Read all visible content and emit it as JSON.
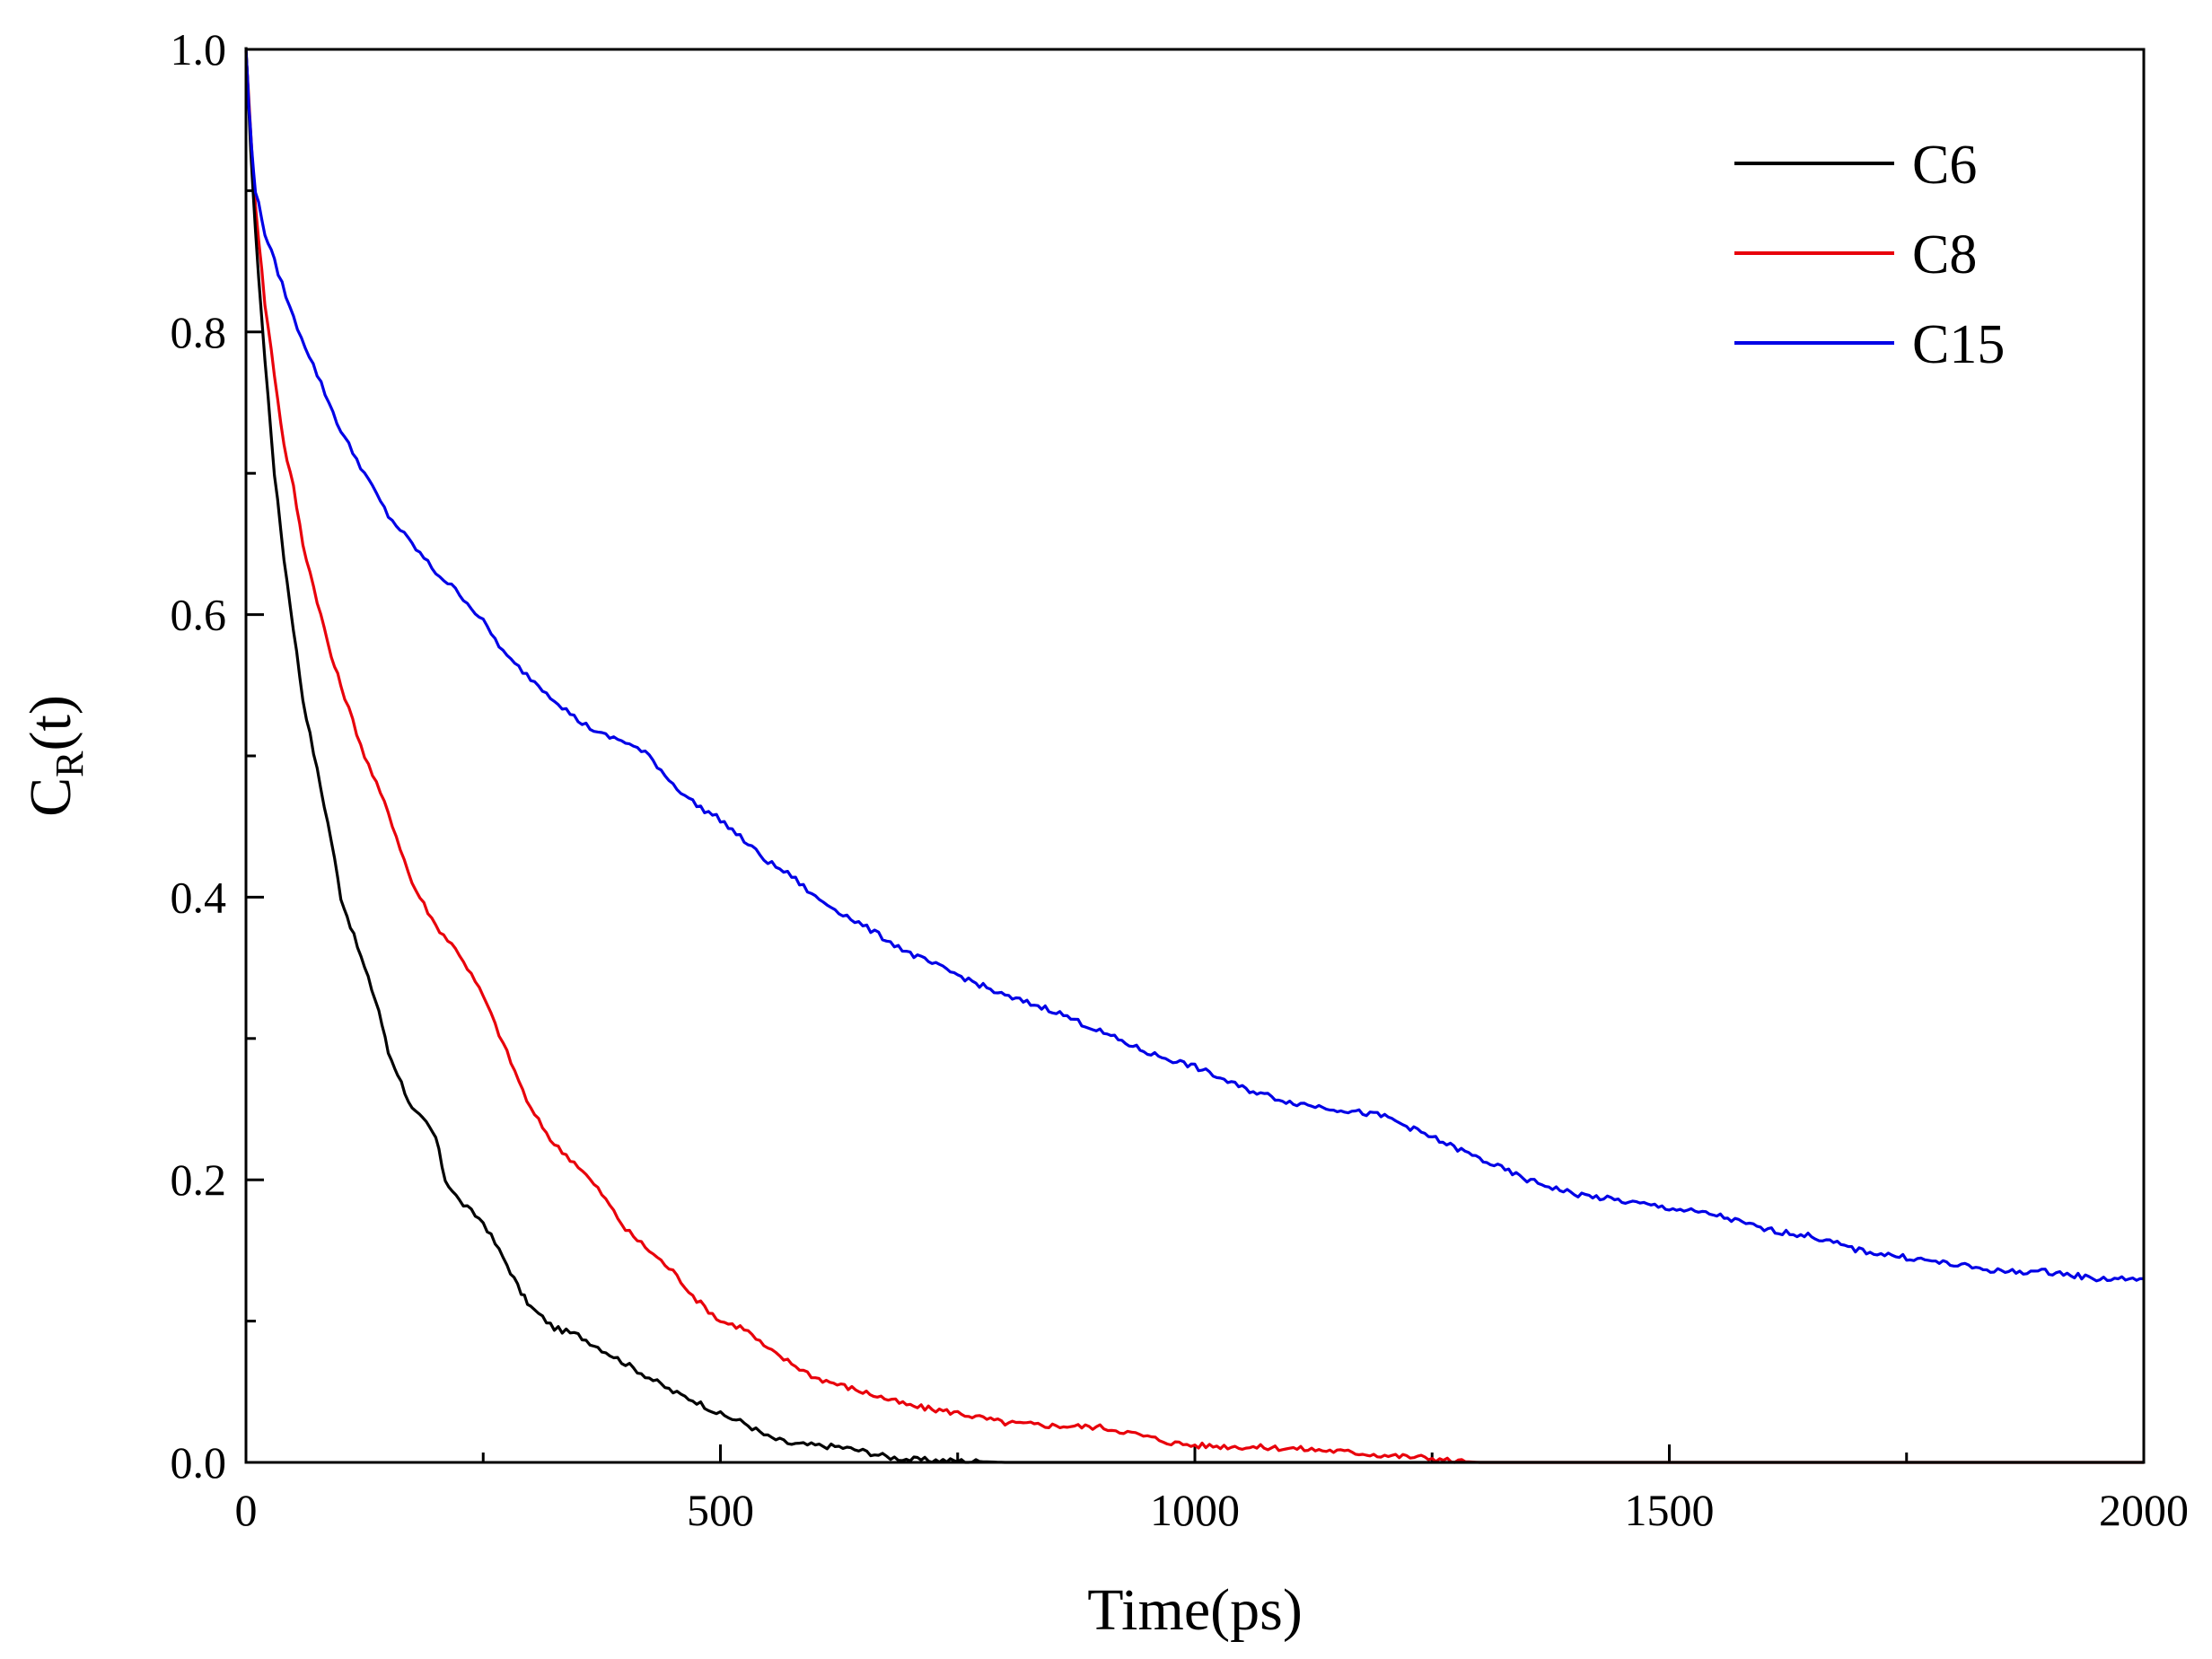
{
  "chart_data": {
    "type": "line",
    "title": "",
    "xlabel": "Time(ps)",
    "ylabel": {
      "main": "C",
      "sub": "R",
      "suffix": "(t)"
    },
    "xlim": [
      0,
      2000
    ],
    "ylim": [
      0.0,
      1.0
    ],
    "x_ticks": [
      0,
      500,
      1000,
      1500,
      2000
    ],
    "x_tick_labels": [
      "0",
      "500",
      "1000",
      "1500",
      "2000"
    ],
    "y_ticks": [
      0.0,
      0.2,
      0.4,
      0.6,
      0.8,
      1.0
    ],
    "y_tick_labels": [
      "0.0",
      "0.2",
      "0.4",
      "0.6",
      "0.8",
      "1.0"
    ],
    "grid": false,
    "legend_position": "top-right",
    "series": [
      {
        "name": "C6",
        "color": "#000000",
        "x": [
          0,
          5,
          10,
          20,
          30,
          40,
          50,
          60,
          75,
          90,
          100,
          110,
          125,
          140,
          150,
          160,
          175,
          190,
          200,
          210,
          225,
          250,
          275,
          290,
          300,
          325,
          350,
          375,
          400,
          425,
          450,
          475,
          500,
          525,
          550,
          575,
          600,
          625,
          650,
          675,
          700,
          750,
          800,
          850,
          900,
          950,
          1000,
          1100,
          1200,
          1300,
          1400,
          1500,
          1600,
          1700,
          1800,
          1900,
          2000
        ],
        "y": [
          1.0,
          0.93,
          0.87,
          0.78,
          0.7,
          0.64,
          0.59,
          0.54,
          0.49,
          0.44,
          0.4,
          0.38,
          0.35,
          0.32,
          0.29,
          0.275,
          0.25,
          0.24,
          0.23,
          0.2,
          0.185,
          0.17,
          0.14,
          0.12,
          0.11,
          0.095,
          0.09,
          0.08,
          0.07,
          0.06,
          0.05,
          0.043,
          0.034,
          0.028,
          0.018,
          0.013,
          0.012,
          0.011,
          0.008,
          0.004,
          0.002,
          0.001,
          0.0,
          0.0,
          0.0,
          0.0,
          0.0,
          0.0,
          0.0,
          0.0,
          0.0,
          0.0,
          0.0,
          0.0,
          0.0,
          0.0,
          0.0
        ]
      },
      {
        "name": "C8",
        "color": "#e8000b",
        "x": [
          0,
          5,
          10,
          20,
          30,
          40,
          50,
          60,
          75,
          90,
          100,
          125,
          150,
          175,
          200,
          225,
          250,
          275,
          300,
          325,
          350,
          375,
          400,
          425,
          450,
          475,
          500,
          525,
          550,
          575,
          600,
          650,
          700,
          750,
          800,
          850,
          900,
          925,
          950,
          975,
          1000,
          1050,
          1100,
          1150,
          1200,
          1250,
          1270,
          1300,
          1400,
          1500,
          1600,
          1700,
          1800,
          1900,
          2000
        ],
        "y": [
          1.0,
          0.94,
          0.89,
          0.82,
          0.77,
          0.72,
          0.69,
          0.65,
          0.61,
          0.57,
          0.55,
          0.5,
          0.46,
          0.41,
          0.38,
          0.36,
          0.33,
          0.29,
          0.25,
          0.225,
          0.21,
          0.19,
          0.165,
          0.15,
          0.135,
          0.115,
          0.1,
          0.095,
          0.08,
          0.07,
          0.06,
          0.05,
          0.04,
          0.035,
          0.028,
          0.026,
          0.025,
          0.022,
          0.018,
          0.014,
          0.012,
          0.011,
          0.01,
          0.008,
          0.005,
          0.003,
          0.001,
          0.0,
          0.0,
          0.0,
          0.0,
          0.0,
          0.0,
          0.0,
          0.0
        ]
      },
      {
        "name": "C15",
        "color": "#0000e6",
        "x": [
          0,
          3,
          6,
          10,
          20,
          30,
          50,
          75,
          100,
          125,
          150,
          175,
          200,
          225,
          250,
          275,
          300,
          325,
          350,
          375,
          400,
          425,
          450,
          475,
          500,
          525,
          550,
          575,
          600,
          625,
          650,
          675,
          700,
          750,
          800,
          850,
          900,
          950,
          1000,
          1050,
          1100,
          1150,
          1200,
          1250,
          1300,
          1350,
          1400,
          1450,
          1500,
          1550,
          1600,
          1650,
          1700,
          1750,
          1800,
          1850,
          1900,
          1950,
          2000
        ],
        "y": [
          1.0,
          0.96,
          0.93,
          0.9,
          0.87,
          0.85,
          0.81,
          0.77,
          0.73,
          0.7,
          0.67,
          0.65,
          0.63,
          0.615,
          0.595,
          0.57,
          0.555,
          0.54,
          0.525,
          0.515,
          0.51,
          0.5,
          0.48,
          0.465,
          0.455,
          0.44,
          0.425,
          0.415,
          0.4,
          0.39,
          0.38,
          0.37,
          0.36,
          0.345,
          0.33,
          0.32,
          0.305,
          0.29,
          0.28,
          0.265,
          0.255,
          0.25,
          0.245,
          0.23,
          0.215,
          0.2,
          0.19,
          0.185,
          0.18,
          0.175,
          0.165,
          0.16,
          0.15,
          0.145,
          0.14,
          0.135,
          0.135,
          0.13,
          0.13
        ]
      }
    ]
  }
}
